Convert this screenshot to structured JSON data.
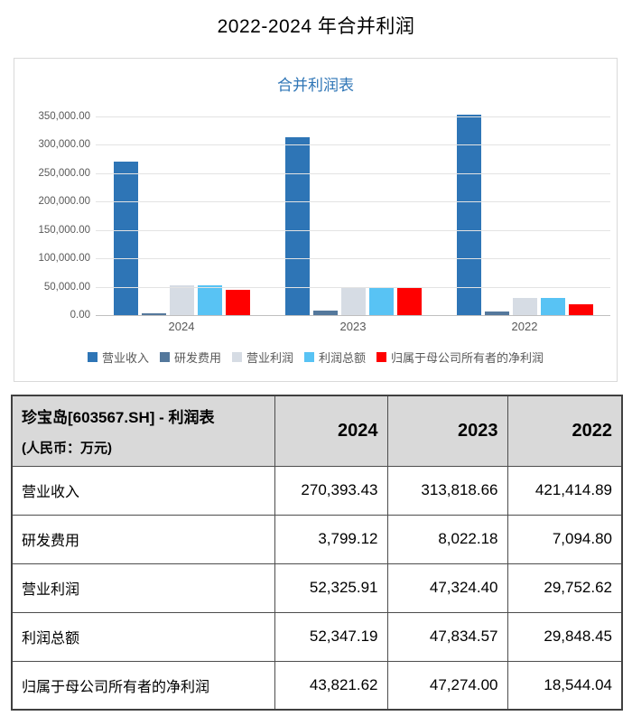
{
  "page": {
    "title": "2022-2024 年合并利润"
  },
  "chart": {
    "title": "合并利润表",
    "panel_border_color": "#d9d9d9",
    "axis_text_color": "#595959",
    "legend_text_color": "#595959",
    "title_color": "#2e75b6"
  },
  "chart_data": {
    "type": "bar",
    "title": "合并利润表",
    "categories": [
      "2024",
      "2023",
      "2022"
    ],
    "series": [
      {
        "name": "营业收入",
        "color": "#2e75b6",
        "values": [
          270393.43,
          313818.66,
          421414.89
        ]
      },
      {
        "name": "研发费用",
        "color": "#54789c",
        "values": [
          3799.12,
          8022.18,
          7094.8
        ]
      },
      {
        "name": "营业利润",
        "color": "#d6dce4",
        "values": [
          52325.91,
          47324.4,
          29752.62
        ]
      },
      {
        "name": "利润总额",
        "color": "#58c3f4",
        "values": [
          52347.19,
          47834.57,
          29848.45
        ]
      },
      {
        "name": "归属于母公司所有者的净利润",
        "color": "#ff0000",
        "values": [
          43821.62,
          47274.0,
          18544.04
        ]
      }
    ],
    "xlabel": "",
    "ylabel": "",
    "ylim": [
      0,
      350000
    ],
    "y_tick_step": 50000,
    "y_tick_labels": [
      "350,000.00",
      "300,000.00",
      "250,000.00",
      "200,000.00",
      "150,000.00",
      "100,000.00",
      "50,000.00",
      "0.00"
    ],
    "grid": true,
    "legend_position": "bottom",
    "clip_note": "2022 营业收入 (421,414.89) exceeds the 350,000 axis max and is clipped at the top of the plot area"
  },
  "table": {
    "title_line1": "珍宝岛[603567.SH] - 利润表",
    "title_line2": "(人民币：万元)",
    "columns": [
      "2024",
      "2023",
      "2022"
    ],
    "rows": [
      {
        "label": "营业收入",
        "values": [
          "270,393.43",
          "313,818.66",
          "421,414.89"
        ]
      },
      {
        "label": "研发费用",
        "values": [
          "3,799.12",
          "8,022.18",
          "7,094.80"
        ]
      },
      {
        "label": "营业利润",
        "values": [
          "52,325.91",
          "47,324.40",
          "29,752.62"
        ]
      },
      {
        "label": "利润总额",
        "values": [
          "52,347.19",
          "47,834.57",
          "29,848.45"
        ]
      },
      {
        "label": "归属于母公司所有者的净利润",
        "values": [
          "43,821.62",
          "47,274.00",
          "18,544.04"
        ]
      }
    ],
    "header_bg": "#d9d9d9",
    "border_color": "#4d4d4d"
  }
}
